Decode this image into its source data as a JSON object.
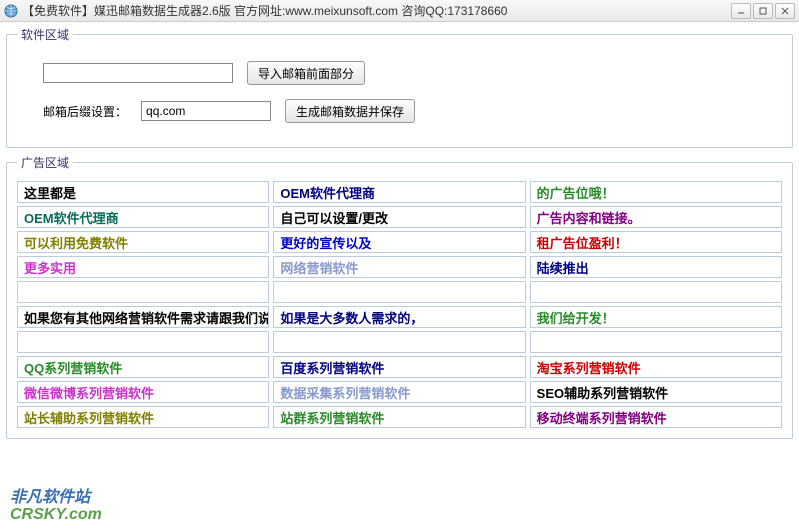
{
  "window": {
    "title": "【免费软件】媒迅邮箱数据生成器2.6版  官方网址:www.meixunsoft.com 咨询QQ:173178660"
  },
  "groups": {
    "software": "软件区域",
    "ad": "广告区域"
  },
  "form": {
    "input1_value": "",
    "suffix_label": "邮箱后缀设置：",
    "suffix_value": "qq.com",
    "btn_import": "导入邮箱前面部分",
    "btn_generate": "生成邮箱数据并保存"
  },
  "ads": [
    {
      "text": "这里都是",
      "color": "#000000"
    },
    {
      "text": "OEM软件代理商",
      "color": "#000080"
    },
    {
      "text": "的广告位哦！",
      "color": "#2a8a2a"
    },
    {
      "text": "OEM软件代理商",
      "color": "#0b6b5a"
    },
    {
      "text": "自己可以设置/更改",
      "color": "#000000"
    },
    {
      "text": "广告内容和链接。",
      "color": "#800080"
    },
    {
      "text": "可以利用免费软件",
      "color": "#808000"
    },
    {
      "text": "更好的宣传以及",
      "color": "#0000cc"
    },
    {
      "text": "租广告位盈利！",
      "color": "#cc0000"
    },
    {
      "text": "更多实用",
      "color": "#cc33cc"
    },
    {
      "text": "网络营销软件",
      "color": "#8899cc"
    },
    {
      "text": "陆续推出",
      "color": "#000080"
    },
    {
      "text": "",
      "color": "#000"
    },
    {
      "text": "",
      "color": "#000"
    },
    {
      "text": "",
      "color": "#000"
    },
    {
      "text": "如果您有其他网络营销软件需求请跟我们说，",
      "color": "#000000"
    },
    {
      "text": "如果是大多数人需求的，",
      "color": "#000080"
    },
    {
      "text": "我们给开发！",
      "color": "#2a8a2a"
    },
    {
      "text": "",
      "color": "#000"
    },
    {
      "text": "",
      "color": "#000"
    },
    {
      "text": "",
      "color": "#000"
    },
    {
      "text": "QQ系列营销软件",
      "color": "#2a8a2a"
    },
    {
      "text": "百度系列营销软件",
      "color": "#000080"
    },
    {
      "text": "淘宝系列营销软件",
      "color": "#cc0000"
    },
    {
      "text": "微信微博系列营销软件",
      "color": "#cc33cc"
    },
    {
      "text": "数据采集系列营销软件",
      "color": "#8899cc"
    },
    {
      "text": "SEO辅助系列营销软件",
      "color": "#000000"
    },
    {
      "text": "站长辅助系列营销软件",
      "color": "#808000"
    },
    {
      "text": "站群系列营销软件",
      "color": "#2a8a2a"
    },
    {
      "text": "移动终端系列营销软件",
      "color": "#800080"
    }
  ],
  "watermark": {
    "cn": "非凡软件站",
    "dom": "CRSKY.com"
  }
}
